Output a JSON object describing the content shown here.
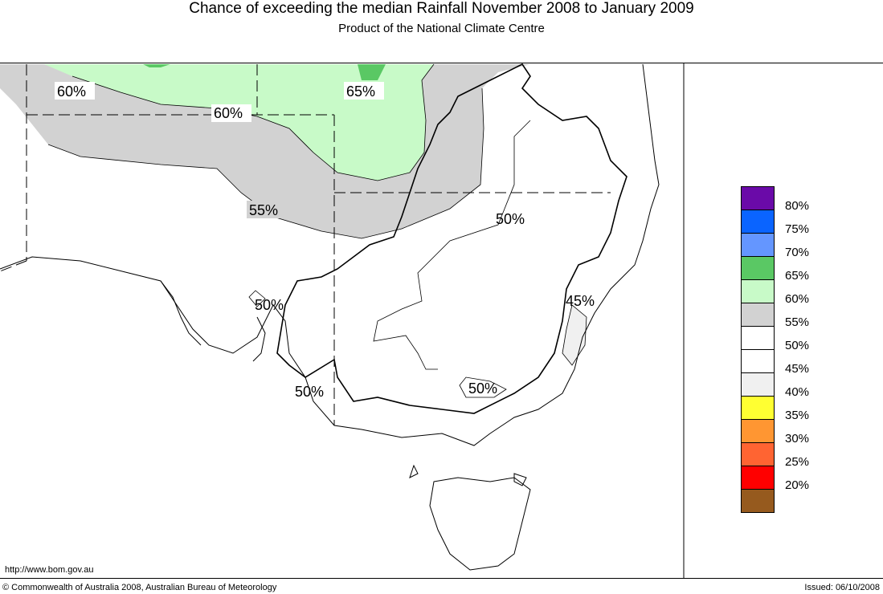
{
  "header": {
    "title": "Chance of exceeding the median Rainfall November 2008 to January 2009",
    "subtitle": "Product of the National Climate Centre"
  },
  "map": {
    "contour_labels": [
      "60%",
      "60%",
      "65%",
      "55%",
      "50%",
      "50%",
      "45%",
      "50%",
      "50%"
    ]
  },
  "legend": {
    "items": [
      {
        "label": "80%",
        "color": "#6a0aa8"
      },
      {
        "label": "75%",
        "color": "#0a64ff"
      },
      {
        "label": "70%",
        "color": "#6496ff"
      },
      {
        "label": "65%",
        "color": "#5ac864"
      },
      {
        "label": "60%",
        "color": "#c8fac8"
      },
      {
        "label": "55%",
        "color": "#d2d2d2"
      },
      {
        "label": "50%",
        "color": "#ffffff"
      },
      {
        "label": "45%",
        "color": "#ffffff"
      },
      {
        "label": "40%",
        "color": "#f0f0f0"
      },
      {
        "label": "35%",
        "color": "#ffff32"
      },
      {
        "label": "30%",
        "color": "#ff9632"
      },
      {
        "label": "25%",
        "color": "#ff6432"
      },
      {
        "label": "20%",
        "color": "#ff0000"
      },
      {
        "label": "",
        "color": "#965a1e"
      }
    ]
  },
  "footer": {
    "url": "http://www.bom.gov.au",
    "copyright": "© Commonwealth of Australia 2008, Australian Bureau of Meteorology",
    "issued": "Issued: 06/10/2008"
  }
}
